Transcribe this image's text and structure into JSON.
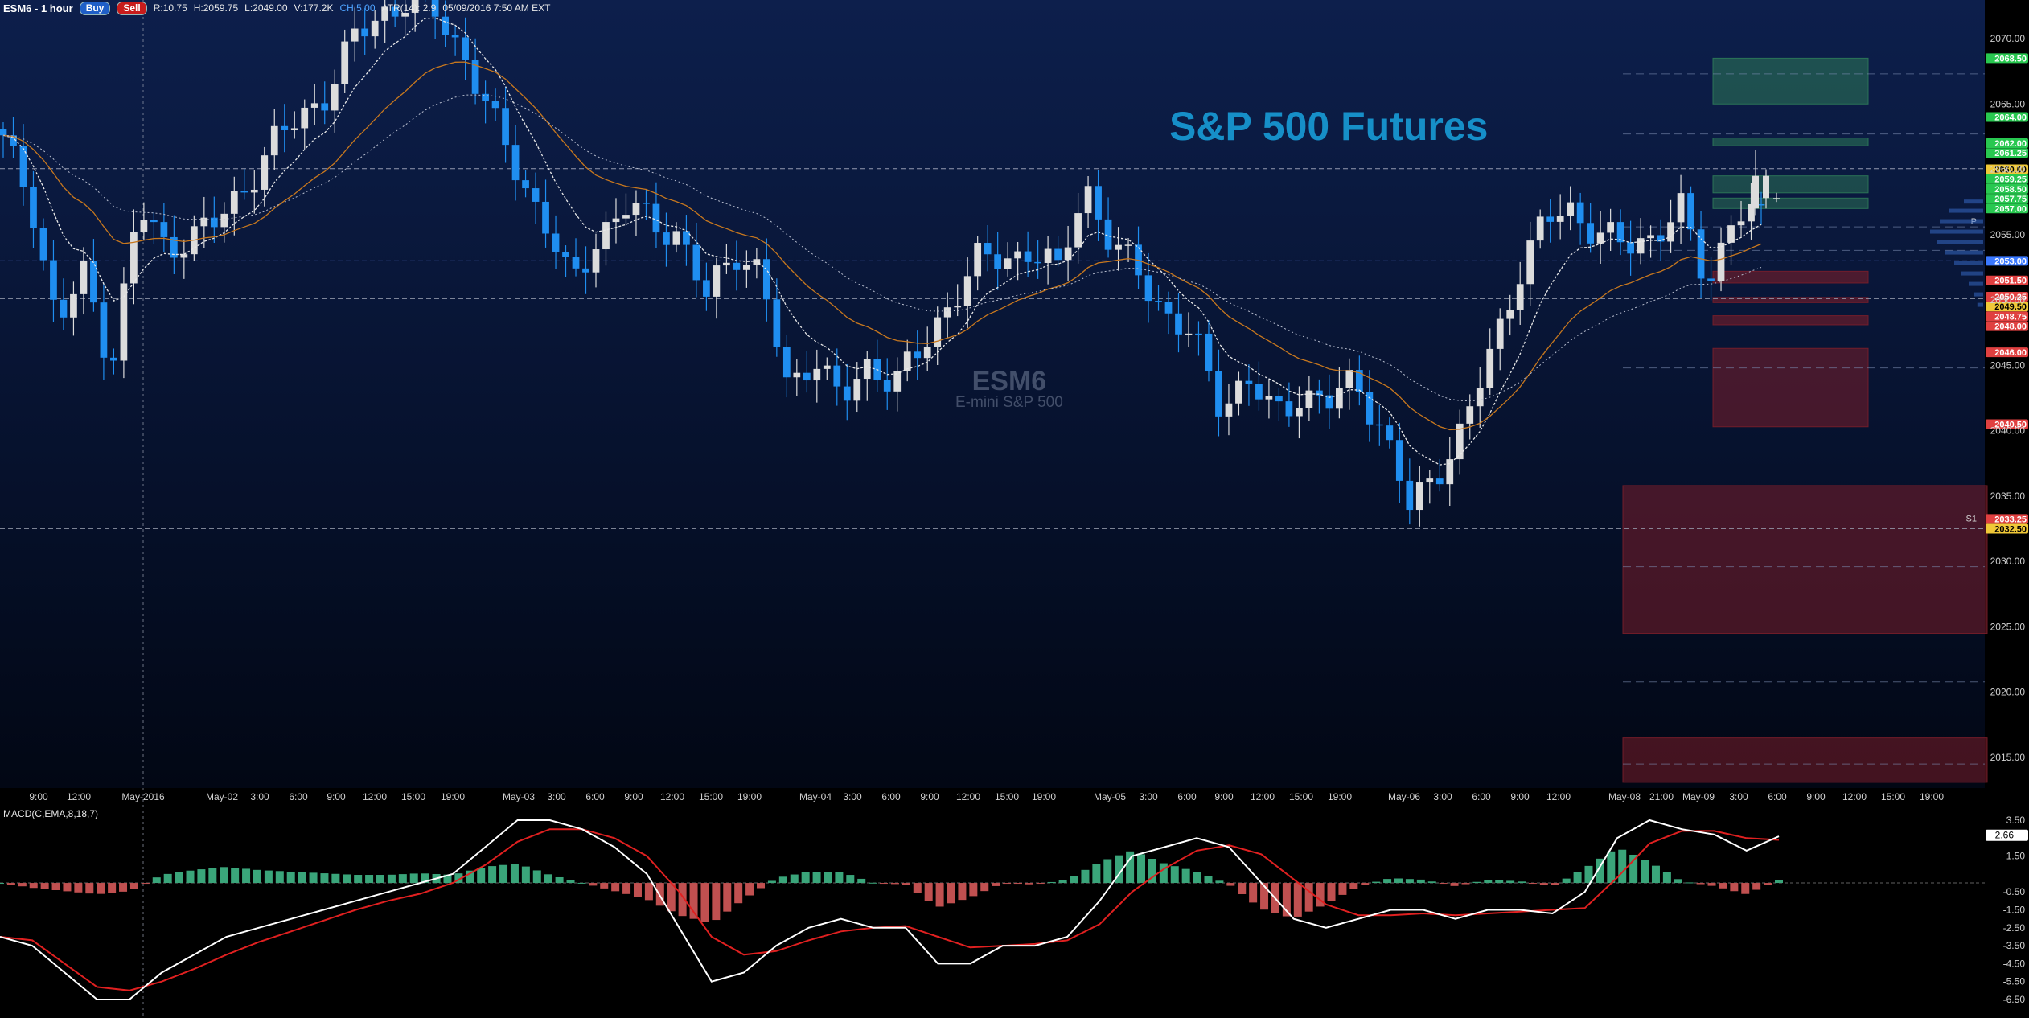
{
  "header": {
    "symbol": "ESM6 - 1 hour",
    "buy_label": "Buy",
    "sell_label": "Sell",
    "range": "R:10.75",
    "high": "H:2059.75",
    "low": "L:2049.00",
    "volume": "V:177.2K",
    "change": "CH:5.00",
    "atr": "ATR(14): 2.9",
    "datetime": "05/09/2016 7:50 AM EXT"
  },
  "title_text": "S&P 500 Futures",
  "watermark": {
    "symbol": "ESM6",
    "name": "E-mini S&P 500"
  },
  "colors": {
    "up": "#dcdcdc",
    "down": "#1f8ef0",
    "ema_fast": "#e8e8e8",
    "ema_slow": "#c8781e",
    "resistance_zone": "#2e7a58",
    "support_zone": "#7a1e2a",
    "macd_line": "#ffffff",
    "signal_line": "#e02020",
    "hist_pos": "#3aa57a",
    "hist_neg": "#c05050"
  },
  "chart_data": [
    {
      "type": "candlestick",
      "symbol": "ESM6",
      "timeframe": "1 hour",
      "ylim": [
        2013,
        2075
      ],
      "price_ticks": [
        "2070.00",
        "2065.00",
        "2060.00",
        "2055.00",
        "2050.00",
        "2045.00",
        "2040.00",
        "2035.00",
        "2030.00",
        "2025.00",
        "2020.00",
        "2015.00"
      ],
      "time_ticks": [
        "9:00",
        "12:00",
        "May-2016",
        "May-02",
        "3:00",
        "6:00",
        "9:00",
        "12:00",
        "15:00",
        "19:00",
        "May-03",
        "3:00",
        "6:00",
        "9:00",
        "12:00",
        "15:00",
        "19:00",
        "May-04",
        "3:00",
        "6:00",
        "9:00",
        "12:00",
        "15:00",
        "19:00",
        "May-05",
        "3:00",
        "6:00",
        "9:00",
        "12:00",
        "15:00",
        "19:00",
        "May-06",
        "3:00",
        "6:00",
        "9:00",
        "12:00",
        "May-08",
        "21:00",
        "May-09",
        "3:00",
        "6:00",
        "9:00",
        "12:00",
        "15:00",
        "19:00"
      ],
      "close_path": [
        2062,
        2058,
        2048,
        2052,
        2045,
        2057,
        2054,
        2055,
        2056,
        2059,
        2062,
        2064,
        2066,
        2070,
        2072,
        2073,
        2072,
        2069,
        2064,
        2060,
        2056,
        2051,
        2055,
        2057,
        2056,
        2055,
        2050,
        2054,
        2052,
        2043,
        2046,
        2042,
        2045,
        2044,
        2046,
        2050,
        2053,
        2053,
        2054,
        2052,
        2059,
        2054,
        2052,
        2049,
        2047,
        2042,
        2044,
        2041,
        2043,
        2042,
        2044,
        2040,
        2034,
        2037,
        2040,
        2046,
        2052,
        2056,
        2057,
        2055,
        2054,
        2055,
        2057,
        2051,
        2057,
        2056
      ],
      "price_labels": [
        {
          "text": "2068.50",
          "role": "resistance"
        },
        {
          "text": "2064.00",
          "role": "resistance"
        },
        {
          "text": "2062.00",
          "role": "resistance"
        },
        {
          "text": "2061.25",
          "role": "resistance"
        },
        {
          "text": "2060.00",
          "role": "high"
        },
        {
          "text": "2059.25",
          "role": "resistance"
        },
        {
          "text": "2058.50",
          "role": "resistance"
        },
        {
          "text": "2057.75",
          "role": "last"
        },
        {
          "text": "2057.00",
          "role": "resistance"
        },
        {
          "text": "2053.00",
          "role": "pivot"
        },
        {
          "text": "2051.50",
          "role": "support"
        },
        {
          "text": "2050.25",
          "role": "support"
        },
        {
          "text": "2049.50",
          "role": "low"
        },
        {
          "text": "2048.75",
          "role": "support"
        },
        {
          "text": "2048.00",
          "role": "support"
        },
        {
          "text": "2046.00",
          "role": "support"
        },
        {
          "text": "2040.50",
          "role": "support"
        },
        {
          "text": "2033.25",
          "role": "support"
        },
        {
          "text": "2032.50",
          "role": "low"
        }
      ],
      "levels_text": {
        "pivot": "P",
        "s1": "S1"
      }
    },
    {
      "type": "line",
      "name": "MACD(C,EMA,8,18,7)",
      "ylim": [
        -7,
        4
      ],
      "ticks": [
        "3.50",
        "1.50",
        "-0.50",
        "-1.50",
        "-2.50",
        "-3.50",
        "-4.50",
        "-5.50",
        "-6.50"
      ],
      "last_value": "2.66",
      "macd": [
        -3,
        -3.5,
        -5,
        -6.5,
        -6.5,
        -5,
        -4,
        -3,
        -2.5,
        -2,
        -1.5,
        -1,
        -0.5,
        0,
        0.5,
        2,
        3.5,
        3.5,
        3,
        2,
        0.5,
        -2.5,
        -5.5,
        -5,
        -3.5,
        -2.5,
        -2,
        -2.5,
        -2.5,
        -4.5,
        -4.5,
        -3.5,
        -3.5,
        -3,
        -1,
        1.5,
        2,
        2.5,
        2,
        0,
        -2,
        -2.5,
        -2,
        -1.5,
        -1.5,
        -2,
        -1.5,
        -1.5,
        -1.7,
        -0.5,
        2.5,
        3.5,
        3,
        2.7,
        1.8,
        2.6
      ],
      "signal": [
        -3,
        -3.2,
        -4.5,
        -5.8,
        -6,
        -5.5,
        -4.8,
        -4,
        -3.3,
        -2.7,
        -2.1,
        -1.5,
        -1,
        -0.6,
        0,
        1,
        2.3,
        3,
        3,
        2.5,
        1.5,
        -0.5,
        -3,
        -4,
        -3.8,
        -3.2,
        -2.7,
        -2.5,
        -2.4,
        -3,
        -3.6,
        -3.5,
        -3.4,
        -3.2,
        -2.3,
        -0.5,
        0.8,
        1.8,
        2.1,
        1.6,
        0.2,
        -1.2,
        -1.8,
        -1.8,
        -1.7,
        -1.8,
        -1.7,
        -1.6,
        -1.5,
        -1.4,
        0.3,
        2.2,
        2.9,
        2.9,
        2.5,
        2.4
      ]
    }
  ]
}
